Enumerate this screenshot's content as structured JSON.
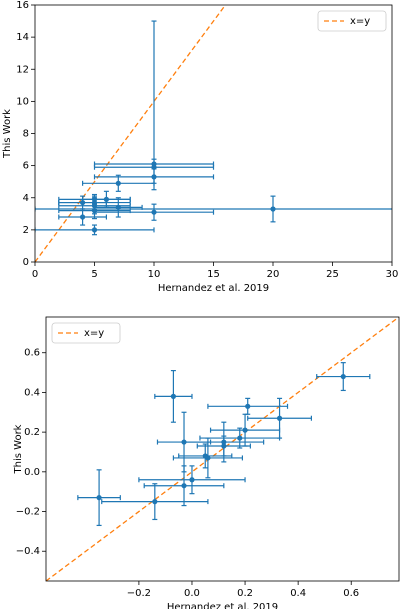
{
  "chart_data": [
    {
      "type": "errorbar-scatter",
      "xlabel": "Hernandez et al. 2019",
      "ylabel": "This Work",
      "xlim": [
        0,
        30
      ],
      "ylim": [
        0,
        16
      ],
      "xticks": [
        0,
        5,
        10,
        15,
        20,
        25,
        30
      ],
      "yticks": [
        0,
        2,
        4,
        6,
        8,
        10,
        12,
        14,
        16
      ],
      "legend": "upper right",
      "reference_line": {
        "name": "x=y",
        "color": "#ff7f0e"
      },
      "points": {
        "color": "#1f77b4",
        "x": [
          4,
          5,
          5,
          5,
          5,
          5,
          4,
          6,
          7,
          7,
          10,
          10,
          10,
          10,
          20
        ],
        "y": [
          2.8,
          2.0,
          3.2,
          3.5,
          3.7,
          3.9,
          3.7,
          3.9,
          3.4,
          4.9,
          3.1,
          5.3,
          5.9,
          6.1,
          3.3
        ],
        "xerr": [
          2,
          5,
          3,
          3,
          3,
          3,
          2,
          2,
          2,
          3,
          5,
          5,
          5,
          5,
          20
        ],
        "yerr": [
          0.5,
          0.3,
          0.5,
          0.5,
          0.4,
          0.3,
          0.4,
          0.5,
          0.6,
          0.5,
          0.5,
          0.8,
          [
            1,
            9.1
          ],
          0.3,
          0.8
        ]
      }
    },
    {
      "type": "errorbar-scatter",
      "xlabel": "Hernandez et al. 2019",
      "ylabel": "This Work",
      "xlim": [
        -0.55,
        0.78
      ],
      "ylim": [
        -0.55,
        0.78
      ],
      "xticks": [
        {
          "value": -0.2,
          "label": "−0.2"
        },
        {
          "value": 0,
          "label": "0.0"
        },
        0.2,
        0.4,
        0.6
      ],
      "yticks": [
        {
          "value": -0.4,
          "label": "−0.4"
        },
        {
          "value": -0.2,
          "label": "−0.2"
        },
        {
          "value": 0,
          "label": "0.0"
        },
        0.2,
        0.4,
        0.6
      ],
      "legend": "upper left",
      "reference_line": {
        "name": "x=y",
        "color": "#ff7f0e"
      },
      "points": {
        "color": "#1f77b4",
        "x": [
          -0.35,
          -0.14,
          -0.07,
          -0.03,
          -0.03,
          0.0,
          0.05,
          0.06,
          0.12,
          0.12,
          0.18,
          0.2,
          0.21,
          0.33,
          0.57
        ],
        "y": [
          -0.13,
          -0.15,
          0.38,
          0.15,
          -0.07,
          -0.04,
          0.08,
          0.07,
          0.15,
          0.13,
          0.17,
          0.21,
          0.33,
          0.27,
          0.48
        ],
        "xerr": [
          0.08,
          0.2,
          0.07,
          0.1,
          0.15,
          0.2,
          0.1,
          0.13,
          0.15,
          0.1,
          0.15,
          0.13,
          0.15,
          0.12,
          0.1
        ],
        "yerr": [
          0.14,
          0.09,
          0.13,
          0.15,
          0.1,
          0.07,
          0.06,
          0.1,
          0.1,
          0.05,
          0.05,
          0.08,
          0.04,
          0.1,
          0.07
        ]
      }
    }
  ]
}
